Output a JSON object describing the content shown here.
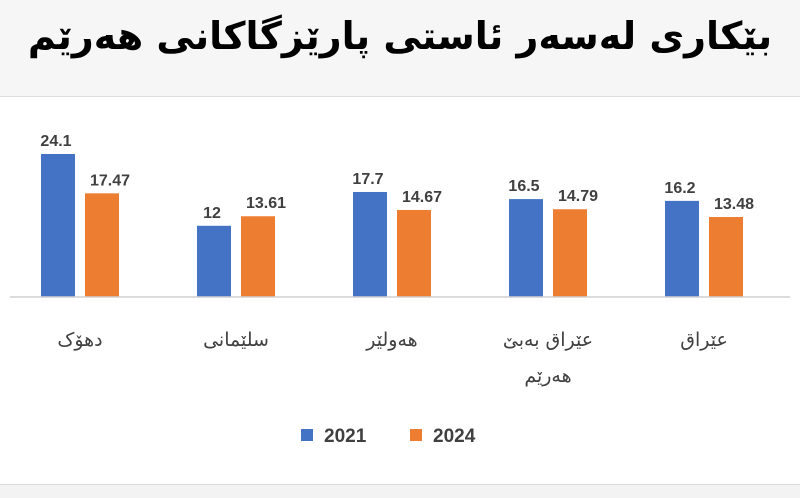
{
  "chart_data": {
    "type": "bar",
    "title": "بێکاری لەسەر ئاستی پارێزگاکانی هەرێم",
    "categories": [
      "دهۆک",
      "سلێمانی",
      "هەولێر",
      "عێراق بەبێ هەرێم",
      "عێراق"
    ],
    "category_lines": [
      [
        "دهۆک"
      ],
      [
        "سلێمانی"
      ],
      [
        "هەولێر"
      ],
      [
        "عێراق بەبێ",
        "هەرێم"
      ],
      [
        "عێراق"
      ]
    ],
    "series": [
      {
        "name": "2021",
        "color": "#4472c4",
        "values": [
          24.1,
          12,
          17.7,
          16.5,
          16.2
        ]
      },
      {
        "name": "2024",
        "color": "#ed7d31",
        "values": [
          17.47,
          13.61,
          14.67,
          14.79,
          13.48
        ]
      }
    ],
    "ylim": [
      0,
      26
    ],
    "grid": false,
    "legend": "bottom"
  }
}
